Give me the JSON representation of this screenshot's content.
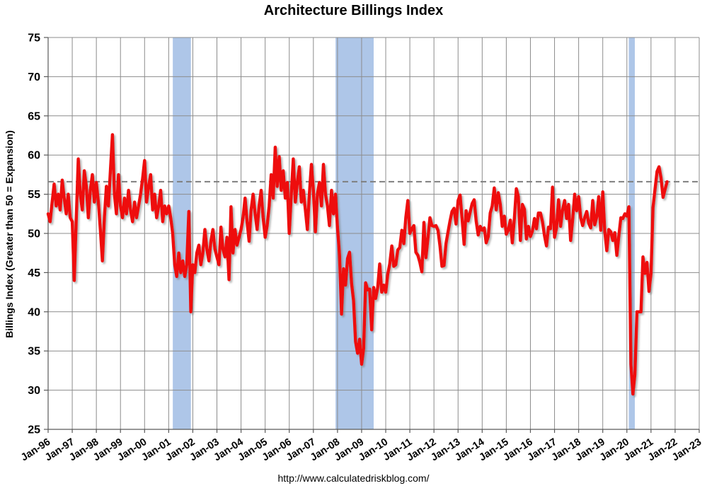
{
  "title": "Architecture Billings Index",
  "source_url": "http://www.calculatedriskblog.com/",
  "chart_data": {
    "type": "line",
    "title": "Architecture Billings Index",
    "xlabel": "",
    "ylabel": "Billings Index (Greater than 50 = Expansion)",
    "ylim": [
      25,
      75
    ],
    "y_ticks": [
      25,
      30,
      35,
      40,
      45,
      50,
      55,
      60,
      65,
      70,
      75
    ],
    "x_ticks": [
      "Jan-96",
      "Jan-97",
      "Jan-98",
      "Jan-99",
      "Jan-00",
      "Jan-01",
      "Jan-02",
      "Jan-03",
      "Jan-04",
      "Jan-05",
      "Jan-06",
      "Jan-07",
      "Jan-08",
      "Jan-09",
      "Jan-10",
      "Jan-11",
      "Jan-12",
      "Jan-13",
      "Jan-14",
      "Jan-15",
      "Jan-16",
      "Jan-17",
      "Jan-18",
      "Jan-19",
      "Jan-20",
      "Jan-21",
      "Jan-22",
      "Jan-23"
    ],
    "x_range_years": [
      1996,
      2023
    ],
    "grid": true,
    "legend": "none",
    "reference_lines": [
      {
        "name": "expansion-threshold",
        "value": 50,
        "style": "solid",
        "color": "#000000",
        "width": 3.6
      },
      {
        "name": "latest-value-marker",
        "value": 56.6,
        "style": "dashed",
        "color": "#7f7f7f",
        "width": 2
      }
    ],
    "recession_bands": [
      {
        "name": "2001-recession",
        "from": 2001.17,
        "to": 2001.92
      },
      {
        "name": "2008-09-recession",
        "from": 2007.92,
        "to": 2009.5
      },
      {
        "name": "2020-recession",
        "from": 2020.08,
        "to": 2020.33
      }
    ],
    "colors": {
      "line": "#ee0a0a",
      "recession_band": "#aec6e8",
      "grid": "#8c8c8c",
      "axis": "#595959",
      "reference_solid": "#000000",
      "reference_dashed": "#7f7f7f"
    },
    "series": [
      {
        "name": "Architecture Billings Index",
        "start": "Jan-1996",
        "frequency": "monthly",
        "values": [
          52.5,
          51.5,
          54.0,
          56.3,
          53.5,
          55.0,
          53.0,
          56.8,
          54.5,
          52.5,
          55.0,
          52.0,
          51.5,
          44.0,
          52.0,
          59.5,
          55.0,
          53.0,
          58.0,
          56.0,
          52.0,
          55.5,
          57.5,
          54.0,
          56.5,
          54.0,
          50.5,
          46.5,
          52.0,
          56.0,
          53.5,
          58.0,
          62.6,
          55.0,
          52.5,
          57.5,
          53.5,
          52.0,
          54.5,
          52.5,
          55.5,
          53.0,
          51.5,
          54.0,
          52.0,
          53.5,
          55.0,
          57.0,
          59.3,
          54.0,
          56.0,
          57.5,
          53.0,
          55.0,
          52.0,
          53.5,
          55.5,
          51.5,
          53.5,
          52.5,
          53.5,
          52.0,
          50.0,
          46.0,
          44.5,
          47.5,
          45.0,
          46.5,
          44.5,
          46.0,
          52.8,
          40.0,
          46.0,
          45.0,
          47.5,
          48.5,
          46.0,
          47.5,
          50.5,
          48.0,
          46.5,
          49.0,
          50.5,
          48.0,
          47.0,
          46.0,
          50.8,
          48.0,
          47.0,
          49.5,
          44.1,
          53.4,
          47.5,
          50.5,
          48.5,
          49.5,
          50.5,
          52.0,
          54.5,
          51.5,
          49.0,
          53.0,
          55.0,
          52.5,
          50.5,
          53.5,
          55.5,
          52.0,
          49.5,
          51.0,
          53.5,
          57.5,
          54.5,
          61.0,
          56.0,
          59.8,
          55.5,
          58.0,
          54.5,
          56.5,
          50.0,
          55.0,
          59.5,
          54.0,
          56.5,
          58.5,
          54.0,
          55.5,
          53.0,
          50.5,
          55.0,
          58.8,
          55.5,
          50.2,
          55.0,
          56.5,
          53.5,
          58.8,
          55.0,
          53.5,
          51.0,
          55.5,
          52.5,
          55.0,
          50.7,
          47.3,
          39.7,
          45.5,
          43.4,
          46.8,
          47.6,
          43.6,
          41.4,
          36.2,
          34.7,
          36.5,
          33.3,
          35.3,
          43.7,
          42.8,
          42.9,
          37.7,
          43.1,
          41.7,
          43.1,
          46.1,
          42.5,
          43.4,
          42.5,
          44.8,
          46.1,
          48.4,
          45.8,
          46.0,
          47.9,
          48.2,
          50.4,
          48.7,
          52.0,
          54.2,
          50.0,
          50.6,
          51.0,
          47.6,
          47.2,
          46.3,
          45.1,
          51.4,
          46.9,
          49.4,
          52.0,
          51.0,
          50.9,
          51.0,
          50.4,
          48.4,
          45.8,
          45.9,
          48.7,
          50.2,
          51.6,
          52.8,
          53.2,
          51.2,
          54.2,
          54.9,
          51.9,
          48.6,
          52.9,
          51.6,
          52.7,
          53.8,
          54.3,
          51.6,
          49.8,
          50.9,
          50.4,
          50.7,
          48.8,
          49.6,
          52.6,
          53.5,
          55.8,
          53.0,
          55.2,
          53.7,
          50.9,
          52.2,
          49.9,
          50.4,
          51.7,
          48.8,
          51.9,
          55.7,
          54.7,
          49.1,
          53.7,
          53.1,
          49.3,
          50.9,
          49.6,
          50.3,
          51.9,
          50.6,
          52.6,
          52.6,
          51.5,
          49.7,
          48.4,
          50.8,
          50.6,
          55.9,
          49.5,
          50.7,
          54.3,
          50.9,
          53.0,
          54.2,
          51.9,
          53.7,
          49.1,
          51.7,
          55.0,
          52.9,
          54.7,
          52.0,
          51.0,
          52.0,
          52.8,
          51.3,
          50.7,
          54.2,
          51.1,
          52.1,
          54.7,
          50.4,
          55.3,
          50.3,
          47.8,
          50.5,
          50.2,
          49.1,
          50.1,
          47.2,
          49.7,
          52.0,
          51.9,
          52.5,
          52.2,
          53.4,
          33.3,
          29.5,
          32.0,
          40.0,
          40.0,
          40.0,
          47.0,
          44.9,
          46.3,
          42.6,
          44.9,
          53.3,
          55.6,
          57.9,
          58.5,
          57.1,
          54.6,
          55.6,
          56.6
        ]
      }
    ]
  }
}
